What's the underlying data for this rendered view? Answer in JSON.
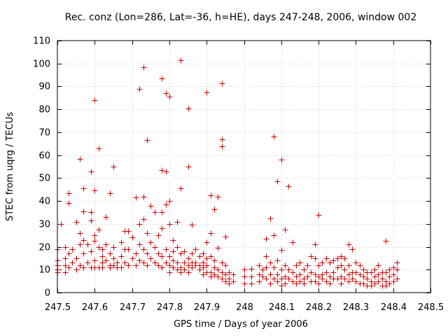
{
  "chart_data": {
    "type": "scatter",
    "title": "Rec. conz (Lon=286, Lat=-36, h=HE), days 247-248, 2006, window 002",
    "xlabel": "GPS time / Days of year 2006",
    "ylabel": "STEC from uqrg / TECUs",
    "xlim": [
      247.5,
      248.5
    ],
    "ylim": [
      0,
      110
    ],
    "x_ticks": [
      247.5,
      247.6,
      247.7,
      247.8,
      247.9,
      248.0,
      248.1,
      248.2,
      248.3,
      248.4,
      248.5
    ],
    "x_tick_labels": [
      "247.5",
      "247.6",
      "247.7",
      "247.8",
      "247.9",
      "248",
      "248.1",
      "248.2",
      "248.3",
      "248.4",
      "248.5"
    ],
    "y_ticks": [
      0,
      10,
      20,
      30,
      40,
      50,
      60,
      70,
      80,
      90,
      100,
      110
    ],
    "y_tick_labels": [
      "0",
      "10",
      "20",
      "30",
      "40",
      "50",
      "60",
      "70",
      "80",
      "90",
      "100",
      "110"
    ],
    "grid": true,
    "marker": "+",
    "point_color": "#d00000",
    "points": [
      [
        247.5,
        9
      ],
      [
        247.5,
        10
      ],
      [
        247.5,
        12
      ],
      [
        247.5,
        14
      ],
      [
        247.5,
        19
      ],
      [
        247.51,
        30
      ],
      [
        247.52,
        15
      ],
      [
        247.52,
        12
      ],
      [
        247.52,
        9
      ],
      [
        247.52,
        20
      ],
      [
        247.53,
        43.5
      ],
      [
        247.53,
        39
      ],
      [
        247.53,
        17
      ],
      [
        247.53,
        11
      ],
      [
        247.54,
        13
      ],
      [
        247.54,
        19
      ],
      [
        247.55,
        31
      ],
      [
        247.55,
        10
      ],
      [
        247.55,
        15
      ],
      [
        247.56,
        58.5
      ],
      [
        247.56,
        26
      ],
      [
        247.56,
        21
      ],
      [
        247.56,
        12
      ],
      [
        247.57,
        45.5
      ],
      [
        247.57,
        35.5
      ],
      [
        247.57,
        23
      ],
      [
        247.57,
        17
      ],
      [
        247.57,
        11
      ],
      [
        247.58,
        21
      ],
      [
        247.58,
        13
      ],
      [
        247.59,
        53
      ],
      [
        247.59,
        35
      ],
      [
        247.59,
        31.5
      ],
      [
        247.59,
        18
      ],
      [
        247.59,
        11
      ],
      [
        247.6,
        84
      ],
      [
        247.6,
        44.5
      ],
      [
        247.6,
        25
      ],
      [
        247.6,
        22.5
      ],
      [
        247.6,
        11
      ],
      [
        247.6,
        14
      ],
      [
        247.61,
        63
      ],
      [
        247.61,
        27.5
      ],
      [
        247.61,
        20
      ],
      [
        247.61,
        11
      ],
      [
        247.62,
        19
      ],
      [
        247.62,
        16
      ],
      [
        247.62,
        13
      ],
      [
        247.62,
        11
      ],
      [
        247.63,
        33
      ],
      [
        247.63,
        21
      ],
      [
        247.63,
        14
      ],
      [
        247.64,
        43.5
      ],
      [
        247.64,
        17
      ],
      [
        247.64,
        12
      ],
      [
        247.64,
        11
      ],
      [
        247.65,
        55
      ],
      [
        247.65,
        20
      ],
      [
        247.65,
        15
      ],
      [
        247.65,
        12
      ],
      [
        247.66,
        13
      ],
      [
        247.66,
        11
      ],
      [
        247.67,
        22
      ],
      [
        247.67,
        16
      ],
      [
        247.67,
        11
      ],
      [
        247.68,
        27
      ],
      [
        247.68,
        19
      ],
      [
        247.68,
        13
      ],
      [
        247.69,
        27
      ],
      [
        247.69,
        19
      ],
      [
        247.69,
        12
      ],
      [
        247.7,
        24
      ],
      [
        247.7,
        15
      ],
      [
        247.71,
        41.5
      ],
      [
        247.71,
        17
      ],
      [
        247.71,
        12
      ],
      [
        247.72,
        89
      ],
      [
        247.72,
        30
      ],
      [
        247.72,
        21
      ],
      [
        247.72,
        14
      ],
      [
        247.73,
        98.5
      ],
      [
        247.73,
        42
      ],
      [
        247.73,
        32
      ],
      [
        247.73,
        19
      ],
      [
        247.73,
        13
      ],
      [
        247.74,
        66.5
      ],
      [
        247.74,
        26
      ],
      [
        247.74,
        17
      ],
      [
        247.74,
        12
      ],
      [
        247.75,
        38
      ],
      [
        247.75,
        22
      ],
      [
        247.75,
        15
      ],
      [
        247.76,
        35
      ],
      [
        247.76,
        20
      ],
      [
        247.76,
        13
      ],
      [
        247.77,
        25
      ],
      [
        247.77,
        17
      ],
      [
        247.77,
        12
      ],
      [
        247.78,
        93.5
      ],
      [
        247.78,
        53.5
      ],
      [
        247.78,
        35
      ],
      [
        247.78,
        28
      ],
      [
        247.78,
        16
      ],
      [
        247.78,
        11
      ],
      [
        247.79,
        87
      ],
      [
        247.79,
        53
      ],
      [
        247.79,
        38.5
      ],
      [
        247.79,
        19
      ],
      [
        247.79,
        13
      ],
      [
        247.8,
        85.5
      ],
      [
        247.8,
        40
      ],
      [
        247.8,
        30
      ],
      [
        247.8,
        16
      ],
      [
        247.8,
        12
      ],
      [
        247.8,
        9
      ],
      [
        247.81,
        23
      ],
      [
        247.81,
        18
      ],
      [
        247.81,
        14
      ],
      [
        247.81,
        11
      ],
      [
        247.82,
        31
      ],
      [
        247.82,
        20
      ],
      [
        247.82,
        13
      ],
      [
        247.82,
        10
      ],
      [
        247.83,
        101.5
      ],
      [
        247.83,
        45.5
      ],
      [
        247.83,
        17
      ],
      [
        247.83,
        11
      ],
      [
        247.83,
        9
      ],
      [
        247.84,
        18
      ],
      [
        247.84,
        13
      ],
      [
        247.84,
        10
      ],
      [
        247.85,
        80.5
      ],
      [
        247.85,
        55
      ],
      [
        247.85,
        15
      ],
      [
        247.85,
        12
      ],
      [
        247.85,
        9
      ],
      [
        247.86,
        29.5
      ],
      [
        247.86,
        17
      ],
      [
        247.86,
        13
      ],
      [
        247.86,
        11
      ],
      [
        247.87,
        19
      ],
      [
        247.87,
        13
      ],
      [
        247.87,
        12
      ],
      [
        247.88,
        16
      ],
      [
        247.88,
        12
      ],
      [
        247.88,
        10
      ],
      [
        247.89,
        17
      ],
      [
        247.89,
        13
      ],
      [
        247.89,
        11
      ],
      [
        247.89,
        8
      ],
      [
        247.9,
        87.5
      ],
      [
        247.9,
        22
      ],
      [
        247.9,
        15
      ],
      [
        247.9,
        12
      ],
      [
        247.9,
        9
      ],
      [
        247.91,
        42.5
      ],
      [
        247.91,
        26
      ],
      [
        247.91,
        16
      ],
      [
        247.91,
        9
      ],
      [
        247.91,
        7
      ],
      [
        247.92,
        36.5
      ],
      [
        247.92,
        14
      ],
      [
        247.92,
        11
      ],
      [
        247.92,
        8
      ],
      [
        247.93,
        42
      ],
      [
        247.93,
        19.5
      ],
      [
        247.93,
        10
      ],
      [
        247.93,
        7
      ],
      [
        247.94,
        91.5
      ],
      [
        247.94,
        67
      ],
      [
        247.94,
        64
      ],
      [
        247.94,
        13
      ],
      [
        247.94,
        9
      ],
      [
        247.94,
        6
      ],
      [
        247.95,
        24.5
      ],
      [
        247.95,
        12
      ],
      [
        247.95,
        8
      ],
      [
        247.95,
        5
      ],
      [
        247.96,
        9
      ],
      [
        247.96,
        6
      ],
      [
        247.96,
        4
      ],
      [
        247.97,
        8
      ],
      [
        247.97,
        5
      ],
      [
        248.0,
        10
      ],
      [
        248.0,
        7
      ],
      [
        248.0,
        4
      ],
      [
        248.02,
        10.5
      ],
      [
        248.02,
        7
      ],
      [
        248.02,
        4
      ],
      [
        248.04,
        12
      ],
      [
        248.04,
        8
      ],
      [
        248.04,
        5
      ],
      [
        248.05,
        10
      ],
      [
        248.05,
        7
      ],
      [
        248.06,
        23.5
      ],
      [
        248.06,
        16
      ],
      [
        248.06,
        11
      ],
      [
        248.06,
        6
      ],
      [
        248.07,
        32.5
      ],
      [
        248.07,
        13
      ],
      [
        248.07,
        8
      ],
      [
        248.07,
        4
      ],
      [
        248.08,
        68
      ],
      [
        248.08,
        25
      ],
      [
        248.08,
        11
      ],
      [
        248.08,
        6
      ],
      [
        248.09,
        48.5
      ],
      [
        248.09,
        14
      ],
      [
        248.09,
        8
      ],
      [
        248.09,
        5
      ],
      [
        248.1,
        58
      ],
      [
        248.1,
        18.5
      ],
      [
        248.1,
        10
      ],
      [
        248.1,
        6
      ],
      [
        248.1,
        3
      ],
      [
        248.11,
        27.5
      ],
      [
        248.11,
        12
      ],
      [
        248.11,
        7
      ],
      [
        248.11,
        4
      ],
      [
        248.12,
        46.5
      ],
      [
        248.12,
        10
      ],
      [
        248.12,
        6
      ],
      [
        248.13,
        22
      ],
      [
        248.13,
        9
      ],
      [
        248.13,
        5
      ],
      [
        248.14,
        12
      ],
      [
        248.14,
        7
      ],
      [
        248.14,
        4
      ],
      [
        248.15,
        13
      ],
      [
        248.15,
        8
      ],
      [
        248.15,
        5
      ],
      [
        248.16,
        10
      ],
      [
        248.16,
        6
      ],
      [
        248.16,
        4
      ],
      [
        248.17,
        12
      ],
      [
        248.17,
        7
      ],
      [
        248.18,
        16
      ],
      [
        248.18,
        9
      ],
      [
        248.18,
        5
      ],
      [
        248.19,
        21
      ],
      [
        248.19,
        15
      ],
      [
        248.19,
        8
      ],
      [
        248.19,
        5
      ],
      [
        248.2,
        34
      ],
      [
        248.2,
        12
      ],
      [
        248.2,
        7
      ],
      [
        248.2,
        4
      ],
      [
        248.21,
        13
      ],
      [
        248.21,
        8
      ],
      [
        248.21,
        6
      ],
      [
        248.22,
        15
      ],
      [
        248.22,
        9
      ],
      [
        248.22,
        5
      ],
      [
        248.23,
        13
      ],
      [
        248.23,
        7
      ],
      [
        248.23,
        4
      ],
      [
        248.24,
        14
      ],
      [
        248.24,
        9
      ],
      [
        248.24,
        6
      ],
      [
        248.25,
        15
      ],
      [
        248.25,
        11
      ],
      [
        248.25,
        6
      ],
      [
        248.26,
        16
      ],
      [
        248.26,
        12
      ],
      [
        248.26,
        7
      ],
      [
        248.26,
        4
      ],
      [
        248.27,
        15
      ],
      [
        248.27,
        10
      ],
      [
        248.27,
        6
      ],
      [
        248.28,
        21
      ],
      [
        248.28,
        12
      ],
      [
        248.28,
        8
      ],
      [
        248.28,
        5
      ],
      [
        248.29,
        19
      ],
      [
        248.29,
        9
      ],
      [
        248.29,
        6
      ],
      [
        248.3,
        13
      ],
      [
        248.3,
        9
      ],
      [
        248.3,
        5
      ],
      [
        248.31,
        12
      ],
      [
        248.31,
        8
      ],
      [
        248.31,
        4
      ],
      [
        248.32,
        10
      ],
      [
        248.32,
        7
      ],
      [
        248.32,
        4
      ],
      [
        248.33,
        9
      ],
      [
        248.33,
        6
      ],
      [
        248.33,
        3
      ],
      [
        248.34,
        9
      ],
      [
        248.34,
        5
      ],
      [
        248.34,
        3
      ],
      [
        248.35,
        10
      ],
      [
        248.35,
        7
      ],
      [
        248.35,
        4
      ],
      [
        248.36,
        12
      ],
      [
        248.36,
        8
      ],
      [
        248.36,
        5
      ],
      [
        248.37,
        9
      ],
      [
        248.37,
        6
      ],
      [
        248.37,
        3
      ],
      [
        248.38,
        22.5
      ],
      [
        248.38,
        9
      ],
      [
        248.38,
        5
      ],
      [
        248.38,
        3
      ],
      [
        248.39,
        10
      ],
      [
        248.39,
        7
      ],
      [
        248.39,
        4
      ],
      [
        248.4,
        11
      ],
      [
        248.4,
        8
      ],
      [
        248.4,
        5
      ],
      [
        248.41,
        13
      ],
      [
        248.41,
        10
      ],
      [
        248.41,
        6
      ]
    ]
  }
}
